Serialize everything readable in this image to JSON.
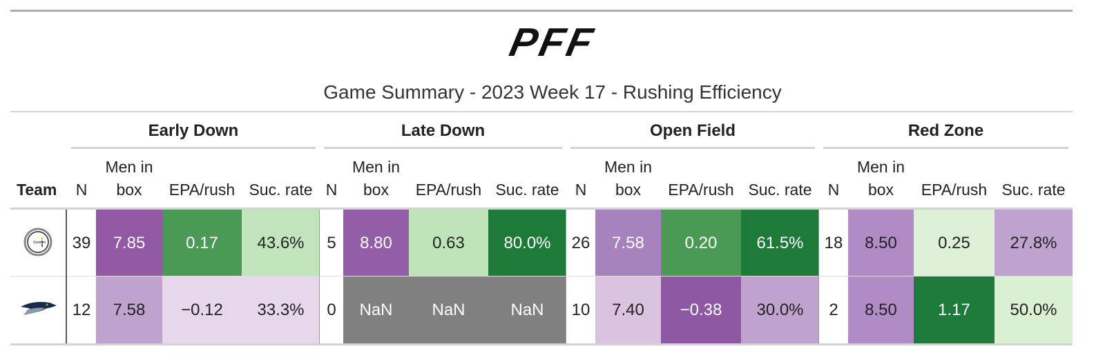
{
  "logo": "PFF",
  "title": "Game Summary - 2023 Week 17 - Rushing Efficiency",
  "table": {
    "team_header": "Team",
    "groups": [
      {
        "name": "Early Down",
        "columns": [
          "N",
          "Men in box",
          "EPA/rush",
          "Suc. rate"
        ]
      },
      {
        "name": "Late Down",
        "columns": [
          "N",
          "Men in box",
          "EPA/rush",
          "Suc. rate"
        ]
      },
      {
        "name": "Open Field",
        "columns": [
          "N",
          "Men in box",
          "EPA/rush",
          "Suc. rate"
        ]
      },
      {
        "name": "Red Zone",
        "columns": [
          "N",
          "Men in box",
          "EPA/rush",
          "Suc. rate"
        ]
      }
    ],
    "rows": [
      {
        "cells": [
          {
            "text": "39"
          },
          {
            "text": "7.85",
            "color": "#9158a3"
          },
          {
            "text": "0.17",
            "color": "#4a9a55"
          },
          {
            "text": "43.6%",
            "color": "#c2e4bc"
          },
          {
            "text": "5"
          },
          {
            "text": "8.80",
            "color": "#935ea5"
          },
          {
            "text": "0.63",
            "color": "#c0e4b9"
          },
          {
            "text": "80.0%",
            "color": "#1e7a38"
          },
          {
            "text": "26"
          },
          {
            "text": "7.58",
            "color": "#a683bd"
          },
          {
            "text": "0.20",
            "color": "#4a9a55"
          },
          {
            "text": "61.5%",
            "color": "#1e7a38"
          },
          {
            "text": "18"
          },
          {
            "text": "8.50",
            "color": "#b08bc4"
          },
          {
            "text": "0.25",
            "color": "#dcf0d7"
          },
          {
            "text": "27.8%",
            "color": "#c0a2cf"
          }
        ]
      },
      {
        "cells": [
          {
            "text": "12"
          },
          {
            "text": "7.58",
            "color": "#c0a2cf"
          },
          {
            "text": "−0.12",
            "color": "#e7d7ea"
          },
          {
            "text": "33.3%",
            "color": "#e7d7ea"
          },
          {
            "text": "0"
          },
          {
            "text": "NaN",
            "color": "#808080"
          },
          {
            "text": "NaN",
            "color": "#808080"
          },
          {
            "text": "NaN",
            "color": "#808080"
          },
          {
            "text": "10"
          },
          {
            "text": "7.40",
            "color": "#dac3e0"
          },
          {
            "text": "−0.38",
            "color": "#8e58a2"
          },
          {
            "text": "30.0%",
            "color": "#c0a2cf"
          },
          {
            "text": "2"
          },
          {
            "text": "8.50",
            "color": "#b08bc4"
          },
          {
            "text": "1.17",
            "color": "#1e7a38"
          },
          {
            "text": "50.0%",
            "color": "#d9f0d3"
          }
        ]
      }
    ]
  }
}
